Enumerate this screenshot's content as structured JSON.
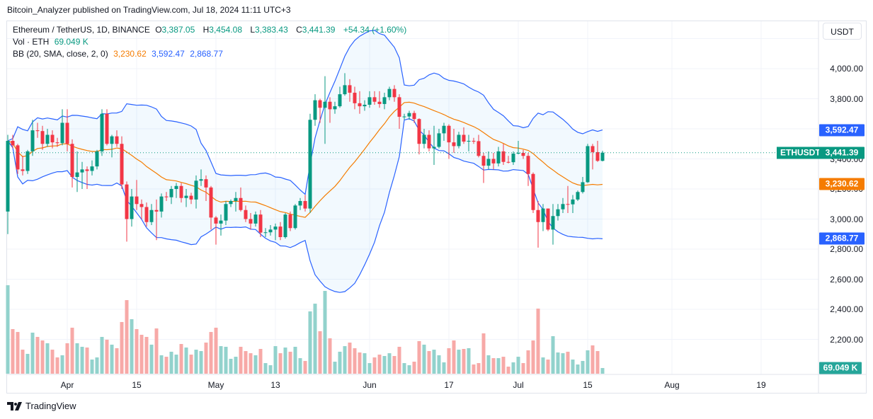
{
  "publisher_line": "Bitcoin_Analyzer published on TradingView.com, Jul 18, 2024 11:11 UTC+3",
  "legend": {
    "symbol": "Ethereum / TetherUS, 1D, BINANCE",
    "open_label": "O",
    "open": "3,387.05",
    "high_label": "H",
    "high": "3,454.08",
    "low_label": "L",
    "low": "3,383.43",
    "close_label": "C",
    "close": "3,441.39",
    "change": "+54.34 (+1.60%)",
    "vol_label": "Vol · ETH",
    "vol_value": "69.049 K",
    "bb_label": "BB (20, SMA, close, 2, 0)",
    "bb_basis": "3,230.62",
    "bb_upper": "3,592.47",
    "bb_lower": "2,868.77"
  },
  "currency_button": "USDT",
  "symbol_tag": "ETHUSDT",
  "badges": {
    "upper": "3,592.47",
    "last": "3,441.39",
    "basis": "3,230.62",
    "lower": "2,868.77",
    "volume": "69.049 K"
  },
  "footer_logo": "TradingView",
  "colors": {
    "up": "#089981",
    "down": "#f23645",
    "bb_band": "#2962ff",
    "bb_basis": "#f57c00",
    "vol_up": "#92d2cc",
    "vol_down": "#f7a9a7"
  },
  "chart_data": {
    "type": "candlestick",
    "title": "Ethereum / TetherUS, 1D, BINANCE",
    "first_date": "2024-03-20",
    "last_date": "2024-07-18",
    "y_axis": {
      "unit": "USDT",
      "ticks": [
        "4,000.00",
        "3,800.00",
        "3,600.00",
        "3,400.00",
        "3,200.00",
        "3,000.00",
        "2,800.00",
        "2,600.00",
        "2,400.00",
        "2,200.00"
      ],
      "tick_values": [
        4000,
        3800,
        3600,
        3400,
        3200,
        3000,
        2800,
        2600,
        2400,
        2200
      ]
    },
    "x_axis": {
      "ticks": [
        {
          "label": "Apr",
          "date": "2024-04-01"
        },
        {
          "label": "15",
          "date": "2024-04-15"
        },
        {
          "label": "May",
          "date": "2024-05-01"
        },
        {
          "label": "13",
          "date": "2024-05-13"
        },
        {
          "label": "Jun",
          "date": "2024-06-01"
        },
        {
          "label": "17",
          "date": "2024-06-17"
        },
        {
          "label": "Jul",
          "date": "2024-07-01"
        },
        {
          "label": "15",
          "date": "2024-07-15"
        },
        {
          "label": "Aug",
          "date": "2024-08-01"
        },
        {
          "label": "19",
          "date": "2024-08-19"
        }
      ]
    },
    "grid": true,
    "ohlc_fields": [
      "open",
      "high",
      "low",
      "close"
    ],
    "ohlc": [
      [
        3050,
        3560,
        2900,
        3520
      ],
      [
        3520,
        3560,
        3470,
        3490
      ],
      [
        3490,
        3500,
        3300,
        3330
      ],
      [
        3330,
        3420,
        3290,
        3320
      ],
      [
        3320,
        3460,
        3300,
        3450
      ],
      [
        3450,
        3660,
        3420,
        3590
      ],
      [
        3590,
        3640,
        3540,
        3585
      ],
      [
        3585,
        3620,
        3460,
        3500
      ],
      [
        3500,
        3600,
        3480,
        3560
      ],
      [
        3560,
        3590,
        3470,
        3510
      ],
      [
        3510,
        3540,
        3480,
        3505
      ],
      [
        3505,
        3730,
        3490,
        3640
      ],
      [
        3640,
        3730,
        3450,
        3500
      ],
      [
        3500,
        3530,
        3210,
        3280
      ],
      [
        3280,
        3450,
        3180,
        3310
      ],
      [
        3310,
        3380,
        3200,
        3330
      ],
      [
        3330,
        3350,
        3200,
        3320
      ],
      [
        3320,
        3390,
        3290,
        3350
      ],
      [
        3350,
        3460,
        3330,
        3450
      ],
      [
        3450,
        3730,
        3420,
        3700
      ],
      [
        3700,
        3730,
        3490,
        3500
      ],
      [
        3500,
        3560,
        3410,
        3550
      ],
      [
        3550,
        3590,
        3480,
        3500
      ],
      [
        3500,
        3550,
        3200,
        3230
      ],
      [
        3230,
        3250,
        2850,
        3000
      ],
      [
        3000,
        3200,
        2950,
        3150
      ],
      [
        3150,
        3260,
        3060,
        3100
      ],
      [
        3100,
        3130,
        3000,
        3080
      ],
      [
        3080,
        3110,
        2950,
        2980
      ],
      [
        2980,
        3100,
        2960,
        3060
      ],
      [
        3060,
        3130,
        2860,
        3050
      ],
      [
        3050,
        3170,
        3010,
        3150
      ],
      [
        3150,
        3180,
        3120,
        3145
      ],
      [
        3145,
        3220,
        3100,
        3200
      ],
      [
        3200,
        3240,
        3140,
        3220
      ],
      [
        3220,
        3240,
        3110,
        3140
      ],
      [
        3140,
        3200,
        3080,
        3155
      ],
      [
        3155,
        3175,
        3100,
        3130
      ],
      [
        3130,
        3290,
        3070,
        3255
      ],
      [
        3255,
        3330,
        3220,
        3265
      ],
      [
        3265,
        3290,
        3120,
        3210
      ],
      [
        3210,
        3220,
        2930,
        3010
      ],
      [
        3010,
        3020,
        2830,
        2970
      ],
      [
        2970,
        3030,
        2890,
        2990
      ],
      [
        2990,
        3120,
        2960,
        3100
      ],
      [
        3100,
        3130,
        3080,
        3120
      ],
      [
        3120,
        3180,
        3050,
        3140
      ],
      [
        3140,
        3210,
        3050,
        3060
      ],
      [
        3060,
        3090,
        2980,
        3000
      ],
      [
        3000,
        3040,
        2930,
        2970
      ],
      [
        2970,
        3050,
        2950,
        3030
      ],
      [
        3030,
        3060,
        2880,
        2910
      ],
      [
        2910,
        2940,
        2880,
        2912
      ],
      [
        2912,
        2960,
        2890,
        2930
      ],
      [
        2930,
        2970,
        2860,
        2950
      ],
      [
        2950,
        2980,
        2860,
        2880
      ],
      [
        2880,
        3040,
        2870,
        3030
      ],
      [
        3030,
        3050,
        2920,
        2940
      ],
      [
        2940,
        3100,
        2930,
        3090
      ],
      [
        3090,
        3140,
        3060,
        3120
      ],
      [
        3120,
        3160,
        3050,
        3070
      ],
      [
        3070,
        3700,
        3040,
        3660
      ],
      [
        3660,
        3830,
        3620,
        3790
      ],
      [
        3790,
        3800,
        3640,
        3740
      ],
      [
        3740,
        3950,
        3500,
        3780
      ],
      [
        3780,
        3810,
        3640,
        3730
      ],
      [
        3730,
        3780,
        3700,
        3750
      ],
      [
        3750,
        3880,
        3740,
        3830
      ],
      [
        3830,
        3970,
        3820,
        3890
      ],
      [
        3890,
        3930,
        3780,
        3840
      ],
      [
        3840,
        3880,
        3730,
        3770
      ],
      [
        3770,
        3850,
        3700,
        3750
      ],
      [
        3750,
        3790,
        3720,
        3760
      ],
      [
        3760,
        3850,
        3740,
        3810
      ],
      [
        3810,
        3850,
        3760,
        3780
      ],
      [
        3780,
        3850,
        3740,
        3765
      ],
      [
        3765,
        3840,
        3730,
        3810
      ],
      [
        3810,
        3880,
        3790,
        3865
      ],
      [
        3865,
        3890,
        3780,
        3810
      ],
      [
        3810,
        3830,
        3600,
        3680
      ],
      [
        3680,
        3700,
        3660,
        3682
      ],
      [
        3682,
        3720,
        3660,
        3705
      ],
      [
        3705,
        3720,
        3640,
        3665
      ],
      [
        3665,
        3670,
        3430,
        3500
      ],
      [
        3500,
        3600,
        3470,
        3560
      ],
      [
        3560,
        3590,
        3450,
        3470
      ],
      [
        3470,
        3620,
        3360,
        3480
      ],
      [
        3480,
        3600,
        3470,
        3570
      ],
      [
        3570,
        3640,
        3520,
        3620
      ],
      [
        3620,
        3630,
        3400,
        3510
      ],
      [
        3510,
        3600,
        3440,
        3485
      ],
      [
        3485,
        3580,
        3470,
        3560
      ],
      [
        3560,
        3610,
        3500,
        3515
      ],
      [
        3515,
        3560,
        3450,
        3520
      ],
      [
        3520,
        3540,
        3500,
        3518
      ],
      [
        3518,
        3560,
        3410,
        3420
      ],
      [
        3420,
        3440,
        3240,
        3355
      ],
      [
        3355,
        3450,
        3330,
        3400
      ],
      [
        3400,
        3440,
        3330,
        3370
      ],
      [
        3370,
        3480,
        3350,
        3450
      ],
      [
        3450,
        3500,
        3360,
        3380
      ],
      [
        3380,
        3420,
        3370,
        3378
      ],
      [
        3378,
        3450,
        3360,
        3435
      ],
      [
        3435,
        3520,
        3430,
        3440
      ],
      [
        3440,
        3460,
        3400,
        3420
      ],
      [
        3420,
        3440,
        3220,
        3300
      ],
      [
        3300,
        3310,
        3040,
        3060
      ],
      [
        3060,
        3120,
        2810,
        2980
      ],
      [
        2980,
        3100,
        2920,
        3070
      ],
      [
        3070,
        3070,
        2920,
        2930
      ],
      [
        2930,
        3100,
        2830,
        3020
      ],
      [
        3020,
        3100,
        2990,
        3065
      ],
      [
        3065,
        3140,
        3040,
        3100
      ],
      [
        3100,
        3220,
        3040,
        3098
      ],
      [
        3098,
        3160,
        3040,
        3130
      ],
      [
        3130,
        3190,
        3120,
        3180
      ],
      [
        3180,
        3280,
        3170,
        3245
      ],
      [
        3245,
        3500,
        3240,
        3485
      ],
      [
        3485,
        3500,
        3330,
        3445
      ],
      [
        3445,
        3520,
        3380,
        3387
      ],
      [
        3387.05,
        3454.08,
        3383.43,
        3441.39
      ]
    ],
    "volume_unit": "K ETH",
    "volume": [
      1075,
      542,
      507,
      292,
      241,
      499,
      447,
      404,
      370,
      292,
      198,
      224,
      370,
      559,
      370,
      327,
      318,
      172,
      198,
      447,
      413,
      353,
      310,
      628,
      894,
      662,
      542,
      473,
      447,
      353,
      550,
      224,
      206,
      267,
      232,
      361,
      318,
      232,
      292,
      275,
      378,
      507,
      559,
      335,
      327,
      181,
      206,
      327,
      275,
      249,
      224,
      301,
      129,
      103,
      335,
      249,
      318,
      267,
      327,
      189,
      155,
      757,
      851,
      516,
      1006,
      430,
      146,
      267,
      335,
      378,
      310,
      258,
      249,
      129,
      198,
      232,
      215,
      249,
      215,
      327,
      129,
      103,
      146,
      396,
      353,
      275,
      292,
      224,
      138,
      310,
      404,
      292,
      301,
      310,
      112,
      129,
      490,
      224,
      189,
      189,
      206,
      86,
      138,
      206,
      129,
      284,
      404,
      791,
      198,
      172,
      456,
      258,
      249,
      267,
      172,
      112,
      155,
      284,
      344,
      275,
      69.049
    ],
    "indicator": {
      "name": "BB (20, SMA, close, 2, 0)",
      "last_basis": 3230.62,
      "last_upper": 3592.47,
      "last_lower": 2868.77
    },
    "last_price": 3441.39
  }
}
